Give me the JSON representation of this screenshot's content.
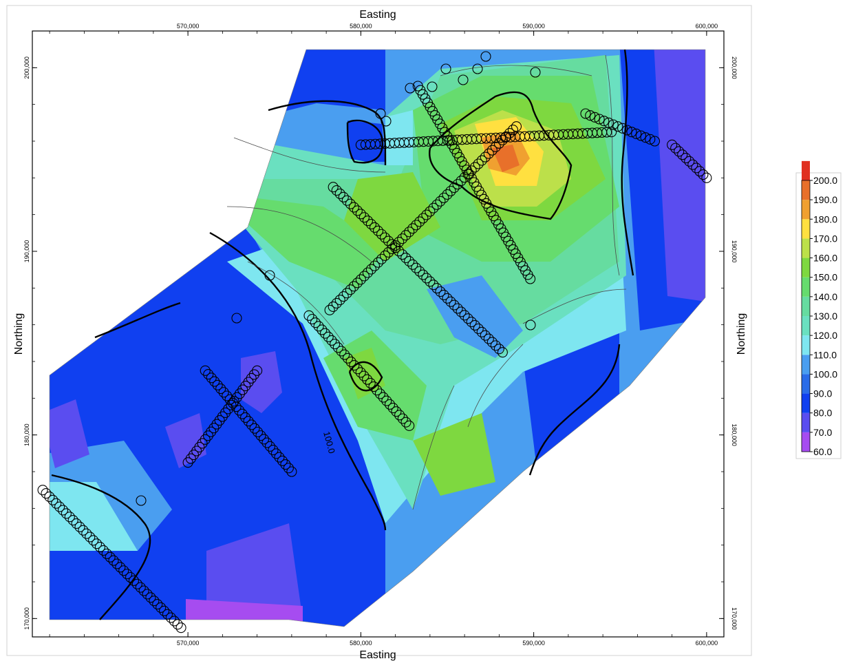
{
  "chart_data": {
    "type": "contour",
    "xlabel_top": "Easting",
    "xlabel_bottom": "Easting",
    "ylabel_left": "Northing",
    "ylabel_right": "Northing",
    "xlim": [
      561000,
      601000
    ],
    "ylim": [
      169000,
      202000
    ],
    "x_ticks": [
      570000,
      580000,
      590000,
      600000
    ],
    "x_tick_labels": [
      "570,000",
      "580,000",
      "590,000",
      "600,000"
    ],
    "y_ticks": [
      170000,
      180000,
      190000,
      200000
    ],
    "y_tick_labels": [
      "170,000",
      "180,000",
      "190,000",
      "200,000"
    ],
    "contour_label": "100.0",
    "colorbar": {
      "levels": [
        60,
        70,
        80,
        90,
        100,
        110,
        120,
        130,
        140,
        150,
        160,
        170,
        180,
        190,
        200
      ],
      "labels": [
        "200.0",
        "190.0",
        "180.0",
        "170.0",
        "160.0",
        "150.0",
        "140.0",
        "130.0",
        "120.0",
        "110.0",
        "100.0",
        "90.0",
        "80.0",
        "70.0",
        "60.0"
      ],
      "colors": [
        "#a64cf0",
        "#5a4df0",
        "#1040f0",
        "#2a6ce8",
        "#4a9ef0",
        "#7ee6f0",
        "#6ae0c0",
        "#66dca0",
        "#66dc6e",
        "#7ed840",
        "#bce04a",
        "#ffe040",
        "#f0a030",
        "#e8702a",
        "#e03020"
      ]
    },
    "survey_lines": [
      {
        "from": [
          561600,
          177000
        ],
        "to": [
          569600,
          169500
        ]
      },
      {
        "from": [
          570000,
          178500
        ],
        "to": [
          574000,
          183500
        ]
      },
      {
        "from": [
          571000,
          183500
        ],
        "to": [
          576000,
          178000
        ]
      },
      {
        "from": [
          577000,
          186500
        ],
        "to": [
          582800,
          180500
        ]
      },
      {
        "from": [
          578400,
          193500
        ],
        "to": [
          588200,
          184500
        ]
      },
      {
        "from": [
          578200,
          186800
        ],
        "to": [
          589000,
          196800
        ]
      },
      {
        "from": [
          583300,
          199000
        ],
        "to": [
          589800,
          188500
        ]
      },
      {
        "from": [
          580000,
          195800
        ],
        "to": [
          594500,
          196500
        ]
      },
      {
        "from": [
          593000,
          197500
        ],
        "to": [
          597000,
          196000
        ]
      },
      {
        "from": [
          598000,
          195800
        ],
        "to": [
          600000,
          194000
        ]
      }
    ]
  }
}
